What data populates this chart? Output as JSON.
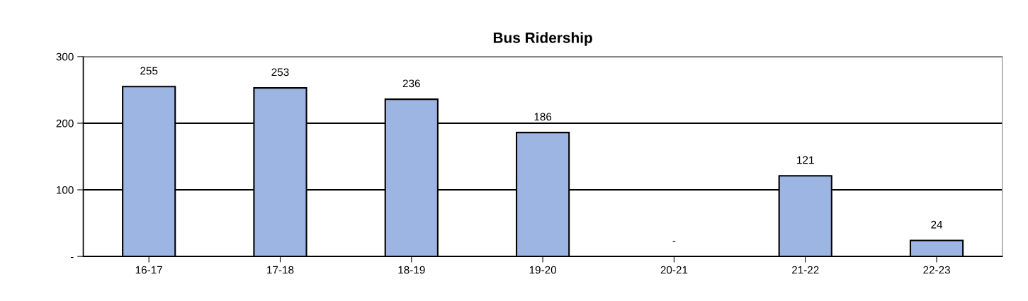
{
  "chart_data": {
    "type": "bar",
    "title": "Bus Ridership",
    "categories": [
      "16-17",
      "17-18",
      "18-19",
      "19-20",
      "20-21",
      "21-22",
      "22-23"
    ],
    "values": [
      255,
      253,
      236,
      186,
      0,
      121,
      24
    ],
    "value_labels": [
      "255",
      "253",
      "236",
      "186",
      "-",
      "121",
      "24"
    ],
    "color": "#9db5e3",
    "ylim": [
      0,
      300
    ],
    "yticks": [
      {
        "value": 0,
        "label": "-"
      },
      100,
      200,
      300
    ],
    "grid": "y"
  }
}
